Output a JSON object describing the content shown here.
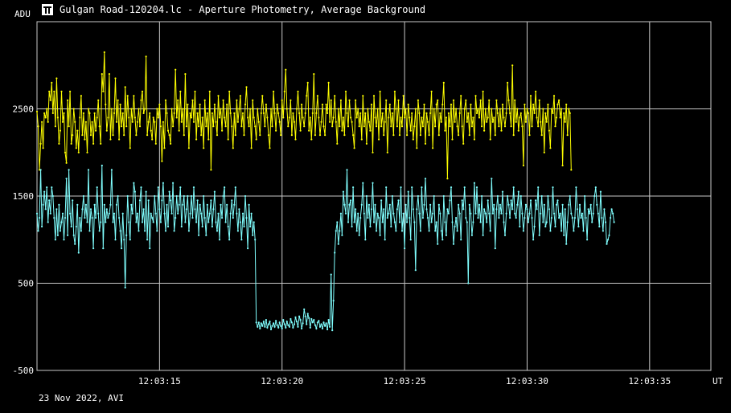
{
  "window": {
    "title": "Gulgan Road-120204.lc - Aperture Photometry, Average Background",
    "icon": "app-logo-icon"
  },
  "footer": {
    "date_label": "23 Nov 2022, AVI"
  },
  "colors": {
    "background": "#000000",
    "grid": "#c8c8c8",
    "series1": "#ffff00",
    "series2": "#80ffff"
  },
  "chart_data": {
    "type": "line",
    "title": "Gulgan Road-120204.lc - Aperture Photometry, Average Background",
    "ylabel": "ADU",
    "xlabel": "UT",
    "ylim": [
      -500,
      3500
    ],
    "yticks": [
      -500,
      500,
      1500,
      2500
    ],
    "xlim": [
      0,
      27.5
    ],
    "x_offset_label_base": "12:03:10",
    "xticks": [
      {
        "x": 5,
        "label": "12:03:15"
      },
      {
        "x": 10,
        "label": "12:03:20"
      },
      {
        "x": 15,
        "label": "12:03:25"
      },
      {
        "x": 20,
        "label": "12:03:30"
      },
      {
        "x": 25,
        "label": "12:03:35"
      }
    ],
    "grid": true,
    "series": [
      {
        "name": "",
        "color": "#ffff00",
        "x_start": 0,
        "x_step": 0.05,
        "values": [
          2470,
          2300,
          1800,
          2100,
          2350,
          2050,
          2450,
          2400,
          2500,
          2350,
          2700,
          2600,
          2800,
          2450,
          2700,
          2300,
          2850,
          2400,
          2100,
          2250,
          2700,
          2350,
          2450,
          2000,
          1880,
          2600,
          2300,
          2700,
          2100,
          2200,
          2500,
          2350,
          2050,
          2250,
          2000,
          2400,
          2650,
          2200,
          2450,
          2150,
          2350,
          2000,
          2500,
          2450,
          2200,
          2350,
          2100,
          2450,
          2250,
          2400,
          2600,
          2300,
          2100,
          2900,
          2700,
          3150,
          2550,
          2250,
          2400,
          2900,
          2150,
          2500,
          2200,
          2450,
          2850,
          2350,
          2600,
          2150,
          2550,
          2300,
          2450,
          2200,
          2750,
          2300,
          2650,
          2400,
          2050,
          2500,
          2350,
          2650,
          2400,
          2200,
          2350,
          2500,
          2300,
          2600,
          2700,
          2450,
          2500,
          3100,
          2200,
          2350,
          2450,
          2250,
          2150,
          2400,
          2350,
          2100,
          2500,
          2400,
          2550,
          2300,
          1900,
          2350,
          2050,
          2600,
          2450,
          2250,
          2200,
          2100,
          2500,
          2300,
          2450,
          2950,
          2400,
          2600,
          2250,
          2700,
          2350,
          2500,
          2200,
          2900,
          2300,
          2550,
          2050,
          2450,
          2400,
          2600,
          2350,
          2700,
          2150,
          2450,
          2300,
          2550,
          2200,
          2400,
          2050,
          2600,
          2300,
          2450,
          2150,
          2700,
          1800,
          2450,
          2300,
          2550,
          2350,
          2200,
          2650,
          2400,
          2500,
          2250,
          2600,
          2400,
          2300,
          2550,
          2150,
          2700,
          2450,
          2300,
          2050,
          2450,
          2200,
          2600,
          2350,
          2500,
          2650,
          2300,
          2450,
          2200,
          2550,
          2750,
          2400,
          2300,
          2500,
          2050,
          2600,
          2400,
          2300,
          2150,
          2500,
          2350,
          2200,
          2450,
          2650,
          2450,
          2300,
          2550,
          2400,
          2200,
          2050,
          2500,
          2300,
          2700,
          2450,
          2250,
          2550,
          2450,
          2350,
          2200,
          2600,
          2400,
          2700,
          2950,
          2500,
          2300,
          2400,
          2600,
          2200,
          2450,
          2350,
          2150,
          2500,
          2700,
          2450,
          2250,
          2550,
          2400,
          2300,
          2450,
          2650,
          2800,
          2250,
          2400,
          2150,
          2450,
          2900,
          2200,
          2450,
          2650,
          2400,
          2200,
          2350,
          2550,
          2300,
          2200,
          2550,
          2450,
          2800,
          2350,
          2600,
          2300,
          2400,
          2650,
          2350,
          2100,
          2500,
          2300,
          2600,
          2250,
          2400,
          2200,
          2700,
          2450,
          2300,
          2600,
          2400,
          2350,
          2200,
          2050,
          2600,
          2400,
          2500,
          2300,
          2450,
          2150,
          2650,
          2300,
          2450,
          2100,
          2500,
          2350,
          2250,
          2550,
          2000,
          2650,
          2400,
          2300,
          2500,
          2150,
          2700,
          2300,
          2450,
          2200,
          2350,
          2600,
          2000,
          2400,
          2550,
          2300,
          2450,
          2200,
          2700,
          2500,
          2300,
          2600,
          2200,
          2400,
          2300,
          2650,
          2400,
          2500,
          2200,
          2550,
          2400,
          2250,
          2450,
          2150,
          2300,
          2500,
          2050,
          2600,
          2450,
          2200,
          2400,
          2300,
          2550,
          2100,
          2450,
          2350,
          2200,
          2450,
          2700,
          2050,
          2500,
          2300,
          2550,
          2600,
          2200,
          2450,
          2350,
          2550,
          2800,
          2250,
          2400,
          1700,
          2450,
          2300,
          2550,
          2150,
          2600,
          2350,
          2500,
          2300,
          2200,
          2450,
          2650,
          2300,
          2100,
          2500,
          2600,
          2350,
          2450,
          2200,
          2550,
          2300,
          2400,
          2150,
          2650,
          2450,
          2500,
          2400,
          2600,
          2300,
          2700,
          2250,
          2500,
          2350,
          2400,
          2600,
          2150,
          2500,
          2350,
          2400,
          2200,
          2600,
          2450,
          2300,
          2500,
          2250,
          2550,
          2400,
          2300,
          2450,
          2800,
          2600,
          2450,
          2300,
          3000,
          2200,
          2600,
          2350,
          2500,
          2250,
          2400,
          2450,
          2300,
          1850,
          2550,
          2350,
          2500,
          2450,
          2200,
          2650,
          2300,
          2550,
          2450,
          2700,
          2400,
          2300,
          2600,
          2350,
          2200,
          2500,
          2000,
          2450,
          2350,
          2550,
          2250,
          2050,
          2500,
          2450,
          2650,
          2300,
          2400,
          2550,
          2600,
          2400,
          2500,
          1850,
          2450,
          2350,
          2550,
          2200,
          2500,
          2450,
          1800
        ]
      },
      {
        "name": "",
        "color": "#80ffff",
        "x_start": 0,
        "x_step": 0.05,
        "values": [
          1300,
          1100,
          1250,
          1800,
          1150,
          1400,
          1550,
          1350,
          1600,
          1200,
          1450,
          1300,
          1600,
          1500,
          1250,
          1000,
          1350,
          1050,
          1400,
          1100,
          1200,
          1300,
          1000,
          1250,
          1700,
          1050,
          1800,
          1300,
          1150,
          1450,
          1050,
          950,
          1150,
          1400,
          850,
          1250,
          1100,
          1350,
          1500,
          1250,
          1400,
          1200,
          1800,
          1100,
          1350,
          1250,
          900,
          1400,
          1250,
          1600,
          1300,
          1100,
          1200,
          1850,
          900,
          1400,
          1200,
          1350,
          1250,
          1300,
          1400,
          1800,
          1200,
          1300,
          1000,
          1400,
          1500,
          1250,
          1100,
          900,
          1300,
          1000,
          450,
          1050,
          1500,
          1200,
          1000,
          1400,
          1300,
          1650,
          1550,
          1200,
          1300,
          1100,
          1450,
          1600,
          1200,
          1350,
          1100,
          1550,
          1000,
          1450,
          900,
          1300,
          1250,
          1200,
          1500,
          1300,
          1100,
          1600,
          1350,
          1200,
          1450,
          1650,
          1300,
          1100,
          1400,
          1150,
          1550,
          1450,
          1300,
          1650,
          1100,
          1250,
          1500,
          1300,
          1400,
          1600,
          1150,
          1400,
          1500,
          1200,
          1350,
          1500,
          1100,
          1300,
          1500,
          1250,
          1600,
          1350,
          1200,
          1450,
          1050,
          1400,
          1300,
          1150,
          1500,
          1250,
          1050,
          1400,
          1200,
          1300,
          1450,
          1150,
          1350,
          1550,
          1200,
          1100,
          1300,
          1000,
          1400,
          1250,
          1500,
          1600,
          1200,
          1400,
          1150,
          1000,
          1300,
          1450,
          1250,
          1400,
          1600,
          1300,
          1100,
          1350,
          1200,
          1000,
          1300,
          1150,
          1500,
          1250,
          900,
          1400,
          1150,
          1300,
          1050,
          1200,
          1000,
          50,
          0,
          50,
          -20,
          40,
          10,
          60,
          0,
          80,
          -10,
          30,
          60,
          -30,
          10,
          40,
          0,
          70,
          20,
          -10,
          50,
          10,
          -20,
          80,
          30,
          -10,
          60,
          20,
          0,
          90,
          50,
          -10,
          30,
          110,
          60,
          0,
          120,
          80,
          -20,
          40,
          200,
          120,
          30,
          150,
          100,
          -10,
          90,
          50,
          80,
          20,
          -20,
          50,
          70,
          0,
          30,
          -20,
          50,
          10,
          40,
          -30,
          80,
          0,
          600,
          -40,
          300,
          850,
          1100,
          1200,
          950,
          1100,
          1300,
          1050,
          1550,
          1400,
          1300,
          1800,
          1200,
          1400,
          1450,
          1150,
          1600,
          1200,
          1350,
          1100,
          1300,
          1050,
          1250,
          1400,
          1650,
          1300,
          1000,
          1500,
          1250,
          1400,
          1150,
          1350,
          1650,
          1200,
          1400,
          1100,
          1300,
          1250,
          1050,
          1450,
          1200,
          1350,
          1000,
          1600,
          1250,
          1300,
          1400,
          1150,
          1500,
          1300,
          1200,
          1100,
          1350,
          1450,
          1200,
          1600,
          1100,
          1300,
          900,
          1400,
          1200,
          1550,
          1250,
          1000,
          1600,
          1350,
          1200,
          650,
          1350,
          1500,
          1300,
          1100,
          1600,
          1250,
          1400,
          1700,
          1350,
          1250,
          1100,
          1400,
          1200,
          1300,
          1500,
          1100,
          1200,
          950,
          1400,
          1300,
          1100,
          1000,
          1500,
          1200,
          1050,
          1350,
          1300,
          1450,
          1600,
          1200,
          950,
          1150,
          1250,
          1100,
          1400,
          1300,
          1000,
          1450,
          1350,
          1600,
          1250,
          1200,
          500,
          1400,
          1300,
          1050,
          1200,
          1650,
          1300,
          1600,
          1250,
          1400,
          1200,
          1500,
          1050,
          1350,
          1300,
          1200,
          1450,
          1300,
          1100,
          1700,
          1300,
          1400,
          900,
          1350,
          1500,
          1250,
          1400,
          1300,
          1550,
          1200,
          1050,
          1300,
          1500,
          1400,
          1250,
          1450,
          1350,
          1600,
          1300,
          1250,
          1400,
          1550,
          1150,
          1500,
          1300,
          1100,
          1250,
          1400,
          1350,
          1200,
          1300,
          1450,
          1250,
          1000,
          1150,
          1450,
          1350,
          1600,
          1050,
          1300,
          1500,
          1200,
          1400,
          1150,
          1200,
          1500,
          1350,
          1100,
          1250,
          1600,
          1300,
          1150,
          1400,
          1450,
          1250,
          1300,
          1100,
          1400,
          1050,
          1350,
          950,
          1200,
          1400,
          1500,
          1300,
          1250,
          1100,
          1250,
          1600,
          1350,
          1150,
          1400,
          1250,
          1300,
          1100,
          1500,
          1250,
          1000,
          1350,
          1300,
          1400,
          1200,
          1300,
          1500,
          1600,
          1400,
          1300,
          1150,
          1550,
          1250,
          1100,
          1350,
          1200,
          950,
          1000,
          1050,
          1250,
          1350,
          1300,
          1200
        ]
      }
    ]
  }
}
